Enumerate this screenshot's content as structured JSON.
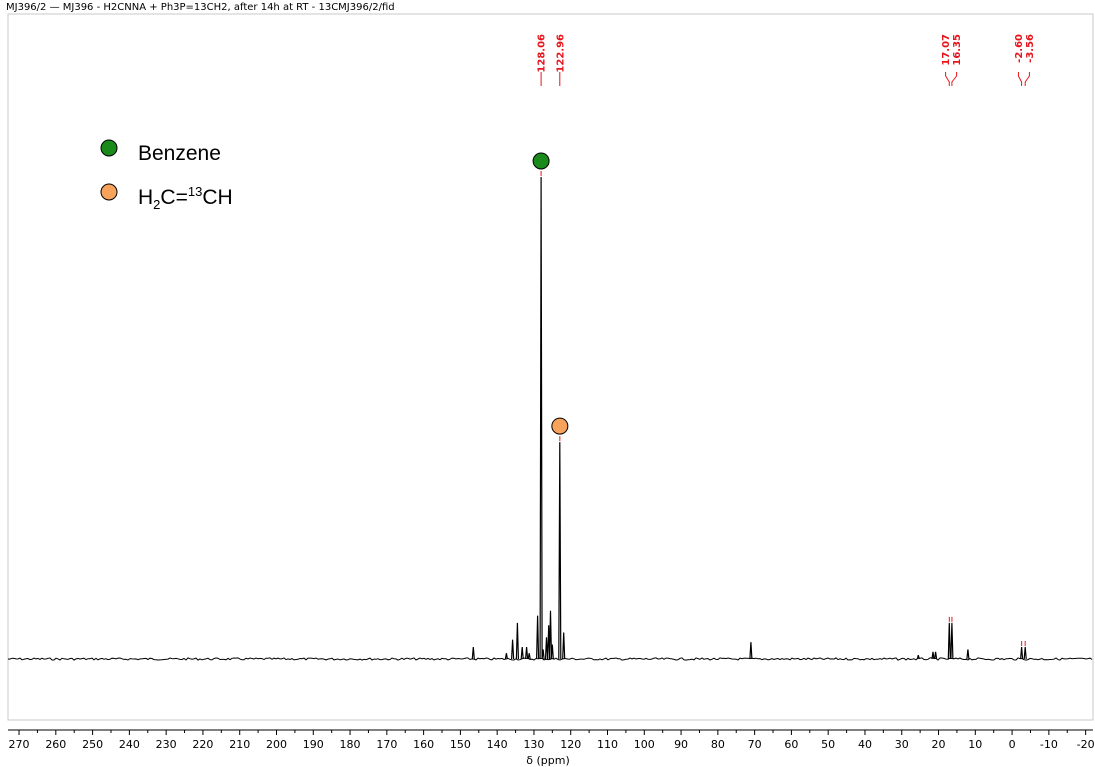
{
  "title": "MJ396/2 — MJ396 - H2CNNA + Ph3P=13CH2, after 14h at RT - 13CMJ396/2/fid",
  "colors": {
    "trace": "#000000",
    "peak_label": "#e8141b",
    "benzene": "#1a8a1a",
    "ethylene": "#f7a35c"
  },
  "legend": [
    {
      "marker": "green-circle",
      "label": "Benzene"
    },
    {
      "marker": "orange-circle",
      "label_parts": [
        "H",
        "2",
        "C=",
        "13",
        "CH"
      ]
    }
  ],
  "chart_data": {
    "type": "line",
    "xlabel": "δ (ppm)",
    "xlim": [
      273,
      -22
    ],
    "x_reversed": true,
    "x_ticks": [
      270,
      260,
      250,
      240,
      230,
      220,
      210,
      200,
      190,
      180,
      170,
      160,
      150,
      140,
      130,
      120,
      110,
      100,
      90,
      80,
      70,
      60,
      50,
      40,
      30,
      20,
      10,
      0,
      -10,
      -20
    ],
    "x_tick_labels": [
      "270",
      "260",
      "250",
      "240",
      "230",
      "220",
      "210",
      "200",
      "190",
      "180",
      "170",
      "160",
      "150",
      "140",
      "130",
      "120",
      "110",
      "100",
      "90",
      "80",
      "70",
      "60",
      "50",
      "40",
      "30",
      "20",
      "10",
      "0",
      "-10",
      "-20"
    ],
    "y_relative_range": [
      -0.05,
      1.05
    ],
    "peak_labels": [
      {
        "text": "128.06",
        "ppm": 128.06
      },
      {
        "text": "122.96",
        "ppm": 122.96
      },
      {
        "text": "17.07",
        "ppm": 17.07
      },
      {
        "text": "16.35",
        "ppm": 16.35
      },
      {
        "text": "-2.60",
        "ppm": -2.6
      },
      {
        "text": "-3.56",
        "ppm": -3.56
      }
    ],
    "peaks": [
      {
        "ppm": 146.5,
        "height": 0.025
      },
      {
        "ppm": 137.5,
        "height": 0.012
      },
      {
        "ppm": 135.8,
        "height": 0.04
      },
      {
        "ppm": 134.5,
        "height": 0.075
      },
      {
        "ppm": 133.2,
        "height": 0.025
      },
      {
        "ppm": 132.0,
        "height": 0.025
      },
      {
        "ppm": 131.3,
        "height": 0.012
      },
      {
        "ppm": 129.0,
        "height": 0.09
      },
      {
        "ppm": 128.06,
        "height": 1.0
      },
      {
        "ppm": 127.5,
        "height": 0.02
      },
      {
        "ppm": 126.6,
        "height": 0.045
      },
      {
        "ppm": 126.0,
        "height": 0.07
      },
      {
        "ppm": 125.5,
        "height": 0.1
      },
      {
        "ppm": 125.0,
        "height": 0.03
      },
      {
        "ppm": 122.96,
        "height": 0.45
      },
      {
        "ppm": 121.9,
        "height": 0.055
      },
      {
        "ppm": 71.0,
        "height": 0.035
      },
      {
        "ppm": 25.5,
        "height": 0.008
      },
      {
        "ppm": 21.5,
        "height": 0.015
      },
      {
        "ppm": 20.8,
        "height": 0.015
      },
      {
        "ppm": 17.07,
        "height": 0.075
      },
      {
        "ppm": 16.35,
        "height": 0.075
      },
      {
        "ppm": 12.0,
        "height": 0.02
      },
      {
        "ppm": -2.6,
        "height": 0.025
      },
      {
        "ppm": -3.56,
        "height": 0.025
      }
    ],
    "markers": [
      {
        "name": "benzene-marker",
        "ppm": 128.06,
        "height": 1.0,
        "color": "#1a8a1a"
      },
      {
        "name": "ethylene-marker",
        "ppm": 122.96,
        "height": 0.45,
        "color": "#f7a35c"
      }
    ]
  }
}
